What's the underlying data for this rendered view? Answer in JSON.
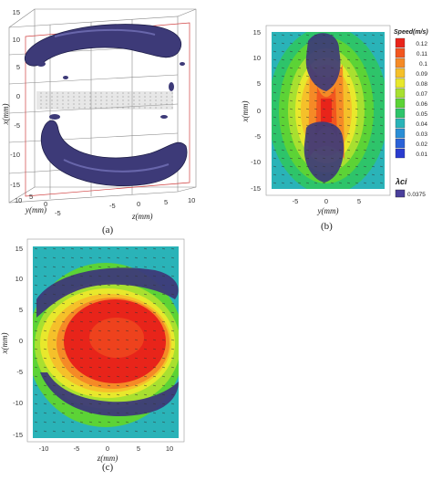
{
  "panel_a": {
    "caption": "(a)",
    "y_ticks": [
      "15",
      "10",
      "5",
      "0",
      "-5",
      "-10",
      "-15"
    ],
    "y_label": "x(mm)",
    "depth_ticks": [
      "10",
      "5",
      "0",
      "-5"
    ],
    "depth_label": "y(mm)",
    "x_ticks": [
      "-5",
      "0",
      "5",
      "10"
    ],
    "x_label": "z(mm)"
  },
  "panel_b": {
    "caption": "(b)",
    "y_ticks": [
      "15",
      "10",
      "5",
      "0",
      "-5",
      "-10",
      "-15"
    ],
    "y_label": "x(mm)",
    "x_ticks": [
      "-5",
      "0",
      "5"
    ],
    "x_label": "y(mm)",
    "legend": {
      "speed_title": "Speed(m/s)",
      "speed_levels": [
        "0.12",
        "0.11",
        "0.1",
        "0.09",
        "0.08",
        "0.07",
        "0.06",
        "0.05",
        "0.04",
        "0.03",
        "0.02",
        "0.01"
      ],
      "speed_colors": [
        "#e8241a",
        "#f2561f",
        "#f58a26",
        "#f5c02a",
        "#e8e82c",
        "#a8e030",
        "#5cd336",
        "#2ec46a",
        "#2ab3b8",
        "#2a8ed6",
        "#2a62d8",
        "#2a3ccf"
      ],
      "lambda_title": "λci",
      "lambda_value": "0.0375",
      "lambda_color": "#4a3f9c"
    }
  },
  "panel_c": {
    "caption": "(c)",
    "y_ticks": [
      "15",
      "10",
      "5",
      "0",
      "-5",
      "-10",
      "-15"
    ],
    "y_label": "x(mm)",
    "x_ticks": [
      "-10",
      "-5",
      "0",
      "5",
      "10"
    ],
    "x_label": "z(mm)"
  }
}
